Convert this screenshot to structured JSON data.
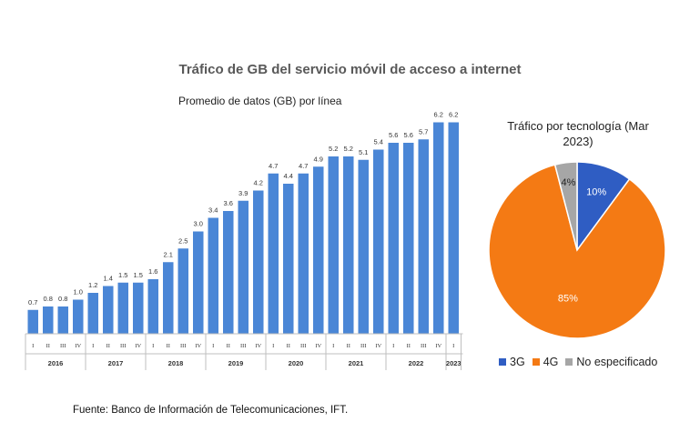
{
  "title": "Tráfico de GB del servicio móvil de acceso a internet",
  "source": "Fuente: Banco de Información de Telecomunicaciones, IFT.",
  "chart_data": [
    {
      "type": "bar",
      "title": "Promedio de datos (GB) por línea",
      "color": "#4A86D6",
      "years": [
        {
          "label": "2016",
          "count": 4
        },
        {
          "label": "2017",
          "count": 4
        },
        {
          "label": "2018",
          "count": 4
        },
        {
          "label": "2019",
          "count": 4
        },
        {
          "label": "2020",
          "count": 4
        },
        {
          "label": "2021",
          "count": 4
        },
        {
          "label": "2022",
          "count": 4
        },
        {
          "label": "2023",
          "count": 1
        }
      ],
      "categories": [
        "I",
        "II",
        "III",
        "IV",
        "I",
        "II",
        "III",
        "IV",
        "I",
        "II",
        "III",
        "IV",
        "I",
        "II",
        "III",
        "IV",
        "I",
        "II",
        "III",
        "IV",
        "I",
        "II",
        "III",
        "IV",
        "I",
        "II",
        "III",
        "IV",
        "I"
      ],
      "values": [
        0.7,
        0.8,
        0.8,
        1.0,
        1.2,
        1.4,
        1.5,
        1.5,
        1.6,
        2.1,
        2.5,
        3.0,
        3.4,
        3.6,
        3.9,
        4.2,
        4.7,
        4.4,
        4.7,
        4.9,
        5.2,
        5.2,
        5.1,
        5.4,
        5.6,
        5.6,
        5.7,
        6.2,
        6.2
      ],
      "labels": [
        "0.7",
        "0.8",
        "0.8",
        "1.0",
        "1.2",
        "1.4",
        "1.5",
        "1.5",
        "1.6",
        "2.1",
        "2.5",
        "3.0",
        "3.4",
        "3.6",
        "3.9",
        "4.2",
        "4.7",
        "4.4",
        "4.7",
        "4.9",
        "5.2",
        "5.2",
        "5.1",
        "5.4",
        "5.6",
        "5.6",
        "5.7",
        "6.2",
        "6.2"
      ],
      "ylim": [
        0,
        6.4
      ]
    },
    {
      "type": "pie",
      "title": "Tráfico por tecnología (Mar 2023)",
      "slices": [
        {
          "name": "3G",
          "value": 10,
          "label": "10%",
          "color": "#2F5DC3"
        },
        {
          "name": "4G",
          "value": 85,
          "label": "85%",
          "color": "#F47A14"
        },
        {
          "name": "No especificado",
          "value": 4,
          "label": "4%",
          "color": "#A6A6A6"
        }
      ]
    }
  ]
}
